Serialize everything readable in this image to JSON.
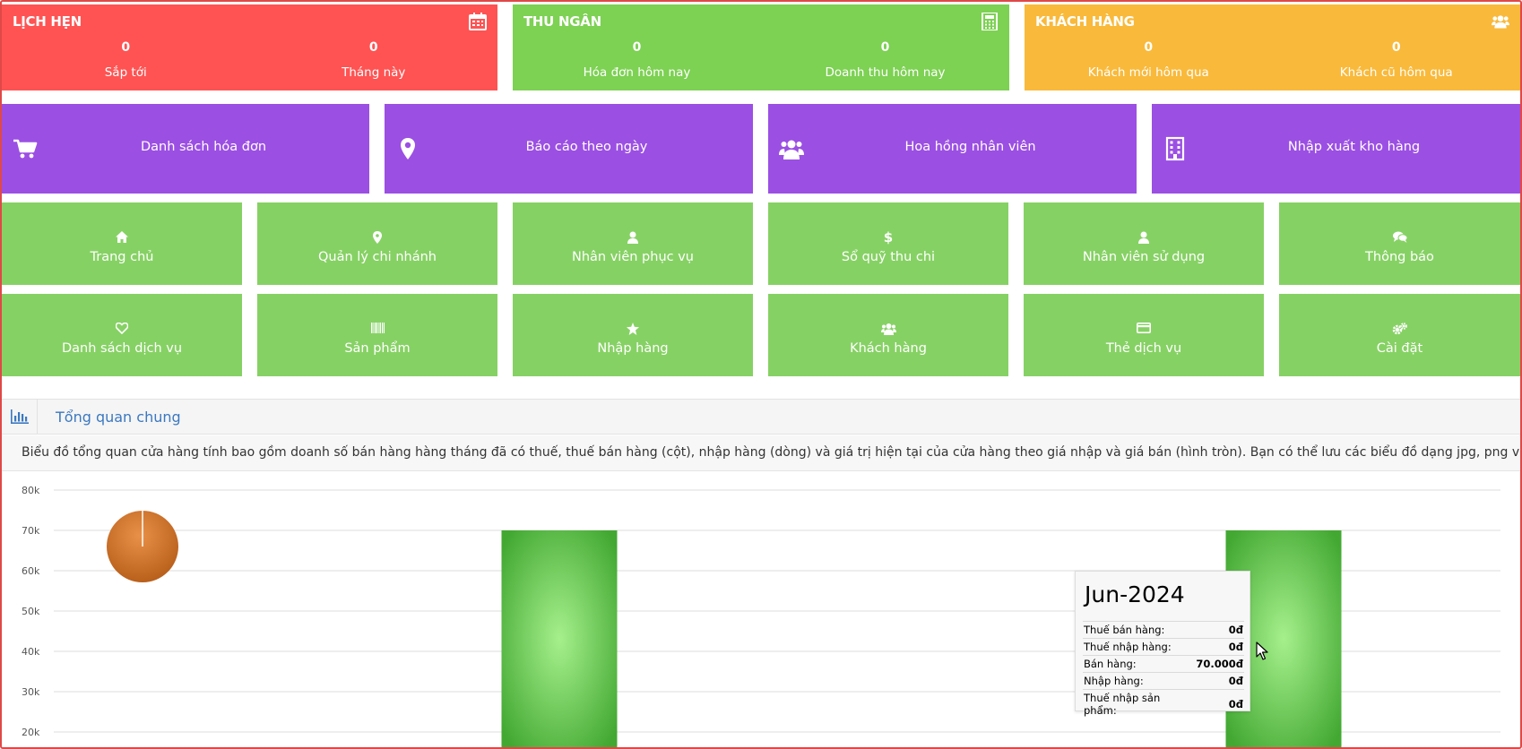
{
  "summary_cards": [
    {
      "title": "LỊCH HẸN",
      "color": "#ff5353",
      "icon": "calendar-icon",
      "stats": [
        {
          "value": "0",
          "label": "Sắp tới"
        },
        {
          "value": "0",
          "label": "Tháng này"
        }
      ]
    },
    {
      "title": "THU NGÂN",
      "color": "#7dd153",
      "icon": "calculator-icon",
      "stats": [
        {
          "value": "0",
          "label": "Hóa đơn hôm nay"
        },
        {
          "value": "0",
          "label": "Doanh thu hôm nay"
        }
      ]
    },
    {
      "title": "KHÁCH HÀNG",
      "color": "#f9b93a",
      "icon": "users-icon",
      "stats": [
        {
          "value": "0",
          "label": "Khách mới hôm qua"
        },
        {
          "value": "0",
          "label": "Khách cũ hôm qua"
        }
      ]
    }
  ],
  "report_tiles": [
    {
      "label": "Danh sách hóa đơn",
      "icon": "cart-icon"
    },
    {
      "label": "Báo cáo theo ngày",
      "icon": "map-marker-icon"
    },
    {
      "label": "Hoa hồng nhân viên",
      "icon": "users-icon"
    },
    {
      "label": "Nhập xuất kho hàng",
      "icon": "building-icon"
    }
  ],
  "menu_tiles": [
    {
      "label": "Trang chủ",
      "icon": "home-icon"
    },
    {
      "label": "Quản lý chi nhánh",
      "icon": "map-marker-icon"
    },
    {
      "label": "Nhân viên phục vụ",
      "icon": "user-icon"
    },
    {
      "label": "Sổ quỹ thu chi",
      "icon": "dollar-icon"
    },
    {
      "label": "Nhân viên sử dụng",
      "icon": "user-icon"
    },
    {
      "label": "Thông báo",
      "icon": "comments-icon"
    },
    {
      "label": "Danh sách dịch vụ",
      "icon": "heart-icon"
    },
    {
      "label": "Sản phẩm",
      "icon": "barcode-icon"
    },
    {
      "label": "Nhập hàng",
      "icon": "star-icon"
    },
    {
      "label": "Khách hàng",
      "icon": "users-icon"
    },
    {
      "label": "Thẻ dịch vụ",
      "icon": "credit-card-icon"
    },
    {
      "label": "Cài đặt",
      "icon": "cogs-icon"
    }
  ],
  "overview": {
    "title": "Tổng quan chung",
    "icon": "bar-chart-icon",
    "description": "Biểu đồ tổng quan cửa hàng tính bao gồm doanh số bán hàng hàng tháng đã có thuế, thuế bán hàng (cột), nhập hàng (dòng) và giá trị hiện tại của cửa hàng theo giá nhập và giá bán (hình tròn). Bạn có thể lưu các biểu đồ dạng jpg, png và pdf."
  },
  "chart_data": {
    "type": "bar",
    "y_ticks": [
      "80k",
      "70k",
      "60k",
      "50k",
      "40k",
      "30k",
      "20k"
    ],
    "ylim": [
      20000,
      80000
    ],
    "bars": [
      {
        "value": 70000
      },
      {
        "value": 70000
      }
    ],
    "bar_color": "#5cc24a",
    "pie_color": "#d4762a",
    "tooltip": {
      "date": "Jun-2024",
      "rows": [
        {
          "label": "Thuế bán hàng:",
          "value": "0đ"
        },
        {
          "label": "Thuế nhập hàng:",
          "value": "0đ"
        },
        {
          "label": "Bán hàng:",
          "value": "70.000đ"
        },
        {
          "label": "Nhập hàng:",
          "value": "0đ"
        },
        {
          "label": "Thuế nhập sản phẩm:",
          "value": "0đ"
        }
      ]
    }
  }
}
